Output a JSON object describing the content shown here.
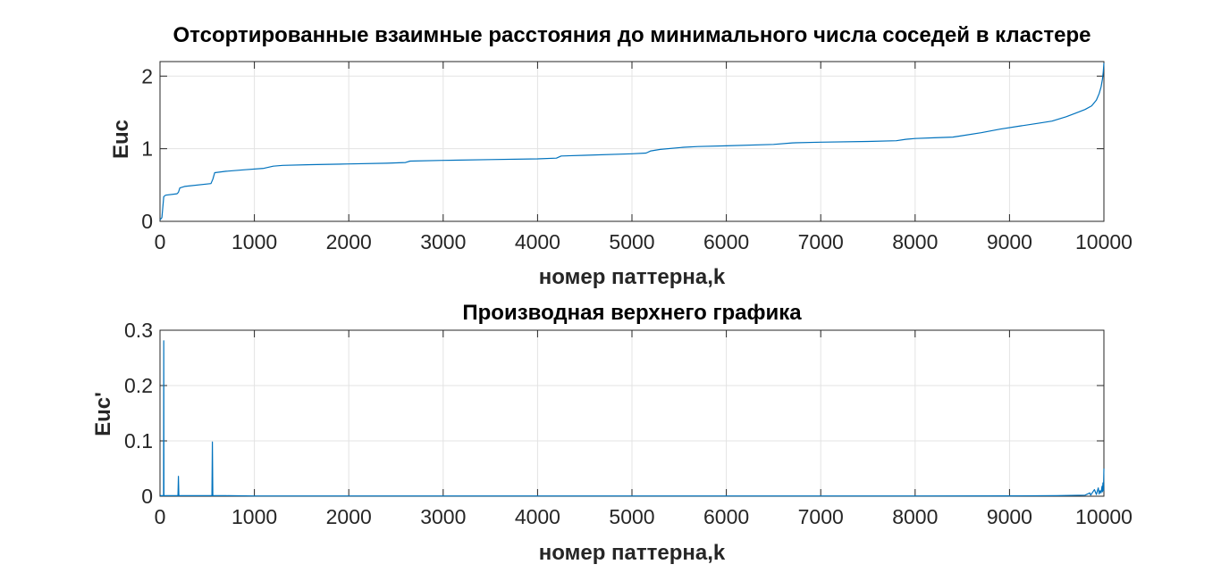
{
  "figure": {
    "background": "#ffffff",
    "series_color": "#0072BD",
    "grid_color": "#e3e3e3",
    "axis_color": "#262626"
  },
  "chart_data": [
    {
      "type": "line",
      "title": "Отсортированные взаимные расстояния до минимального числа соседей в кластере",
      "xlabel": "номер паттерна,k",
      "ylabel": "Euc",
      "xlim": [
        0,
        10000
      ],
      "ylim": [
        0,
        2.2
      ],
      "xticks": [
        0,
        1000,
        2000,
        3000,
        4000,
        5000,
        6000,
        7000,
        8000,
        9000,
        10000
      ],
      "yticks": [
        0,
        1,
        2
      ],
      "xtick_labels": [
        "0",
        "1000",
        "2000",
        "3000",
        "4000",
        "5000",
        "6000",
        "7000",
        "8000",
        "9000",
        "10000"
      ],
      "ytick_labels": [
        "0",
        "1",
        "2"
      ],
      "grid": true,
      "legend": "none",
      "series": [
        {
          "x": [
            0,
            20,
            40,
            60,
            180,
            195,
            210,
            260,
            540,
            560,
            580,
            700,
            900,
            1100,
            1200,
            1300,
            1600,
            2000,
            2400,
            2600,
            2650,
            3000,
            3500,
            4000,
            4200,
            4250,
            4500,
            5000,
            5150,
            5200,
            5300,
            5550,
            5700,
            6000,
            6500,
            6700,
            7000,
            7500,
            7800,
            7900,
            8000,
            8200,
            8400,
            8500,
            8700,
            8900,
            9100,
            9300,
            9450,
            9600,
            9700,
            9800,
            9870,
            9920,
            9950,
            9970,
            9985,
            9993,
            10000
          ],
          "y": [
            0.02,
            0.05,
            0.34,
            0.36,
            0.38,
            0.4,
            0.46,
            0.48,
            0.52,
            0.58,
            0.67,
            0.69,
            0.71,
            0.73,
            0.76,
            0.77,
            0.78,
            0.79,
            0.8,
            0.81,
            0.83,
            0.84,
            0.85,
            0.86,
            0.87,
            0.9,
            0.91,
            0.93,
            0.94,
            0.97,
            0.99,
            1.02,
            1.03,
            1.04,
            1.06,
            1.08,
            1.09,
            1.1,
            1.11,
            1.13,
            1.14,
            1.15,
            1.16,
            1.18,
            1.22,
            1.27,
            1.31,
            1.35,
            1.38,
            1.44,
            1.49,
            1.54,
            1.59,
            1.67,
            1.76,
            1.85,
            1.96,
            2.06,
            2.18
          ]
        }
      ]
    },
    {
      "type": "line",
      "title": "Производная верхнего графика",
      "xlabel": "номер паттерна,k",
      "ylabel": "Euc'",
      "xlim": [
        0,
        10000
      ],
      "ylim": [
        0,
        0.3
      ],
      "xticks": [
        0,
        1000,
        2000,
        3000,
        4000,
        5000,
        6000,
        7000,
        8000,
        9000,
        10000
      ],
      "yticks": [
        0,
        0.1,
        0.2,
        0.3
      ],
      "xtick_labels": [
        "0",
        "1000",
        "2000",
        "3000",
        "4000",
        "5000",
        "6000",
        "7000",
        "8000",
        "9000",
        "10000"
      ],
      "ytick_labels": [
        "0",
        "0.1",
        "0.2",
        "0.3"
      ],
      "grid": true,
      "legend": "none",
      "series": [
        {
          "x": [
            0,
            10,
            20,
            38,
            40,
            42,
            60,
            190,
            195,
            200,
            205,
            300,
            550,
            555,
            560,
            565,
            700,
            1000,
            2000,
            3000,
            4000,
            5000,
            6000,
            7000,
            8000,
            9000,
            9500,
            9800,
            9850,
            9860,
            9900,
            9920,
            9940,
            9950,
            9960,
            9970,
            9980,
            9985,
            9990,
            9995,
            10000
          ],
          "y": [
            0.002,
            0.001,
            0.001,
            0.001,
            0.281,
            0.001,
            0.001,
            0.001,
            0.036,
            0.001,
            0.001,
            0.001,
            0.001,
            0.098,
            0.001,
            0.001,
            0.001,
            0.0005,
            0.0005,
            0.0005,
            0.0005,
            0.0005,
            0.0005,
            0.0005,
            0.0005,
            0.0007,
            0.001,
            0.002,
            0.006,
            0.002,
            0.012,
            0.003,
            0.015,
            0.004,
            0.01,
            0.006,
            0.018,
            0.008,
            0.024,
            0.01,
            0.05
          ]
        }
      ]
    }
  ]
}
